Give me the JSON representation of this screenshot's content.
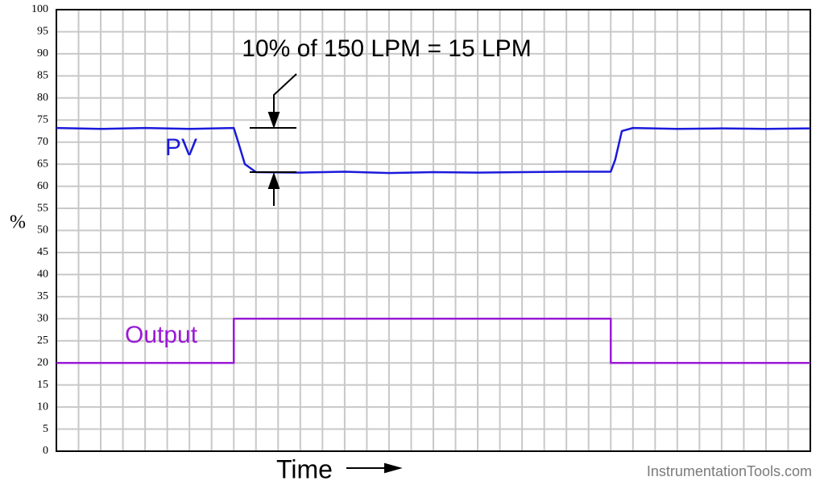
{
  "chart_data": {
    "type": "line",
    "annotation": "10% of 150 LPM = 15 LPM",
    "y_label": "%",
    "x_label": "Time",
    "watermark": "InstrumentationTools.com",
    "xlim": [
      0,
      34
    ],
    "ylim": [
      0,
      100
    ],
    "yticks": [
      0,
      5,
      10,
      15,
      20,
      25,
      30,
      35,
      40,
      45,
      50,
      55,
      60,
      65,
      70,
      75,
      80,
      85,
      90,
      95,
      100
    ],
    "grid": true,
    "series": [
      {
        "name": "PV",
        "color": "#1a1adb",
        "x": [
          0,
          2,
          4,
          6,
          8,
          8.2,
          8.5,
          9,
          11,
          13,
          15,
          17,
          19,
          21,
          23,
          25,
          25.2,
          25.5,
          26,
          28,
          30,
          32,
          34
        ],
        "values": [
          73.2,
          73.0,
          73.2,
          73.0,
          73.2,
          70,
          65,
          63.2,
          63.1,
          63.3,
          63.0,
          63.2,
          63.1,
          63.2,
          63.3,
          63.3,
          66,
          72.5,
          73.2,
          73.0,
          73.1,
          73.0,
          73.1
        ]
      },
      {
        "name": "Output",
        "color": "#9a1ad6",
        "x": [
          0,
          8,
          8,
          25,
          25,
          34
        ],
        "values": [
          20,
          20,
          30,
          30,
          20,
          20
        ]
      }
    ]
  }
}
